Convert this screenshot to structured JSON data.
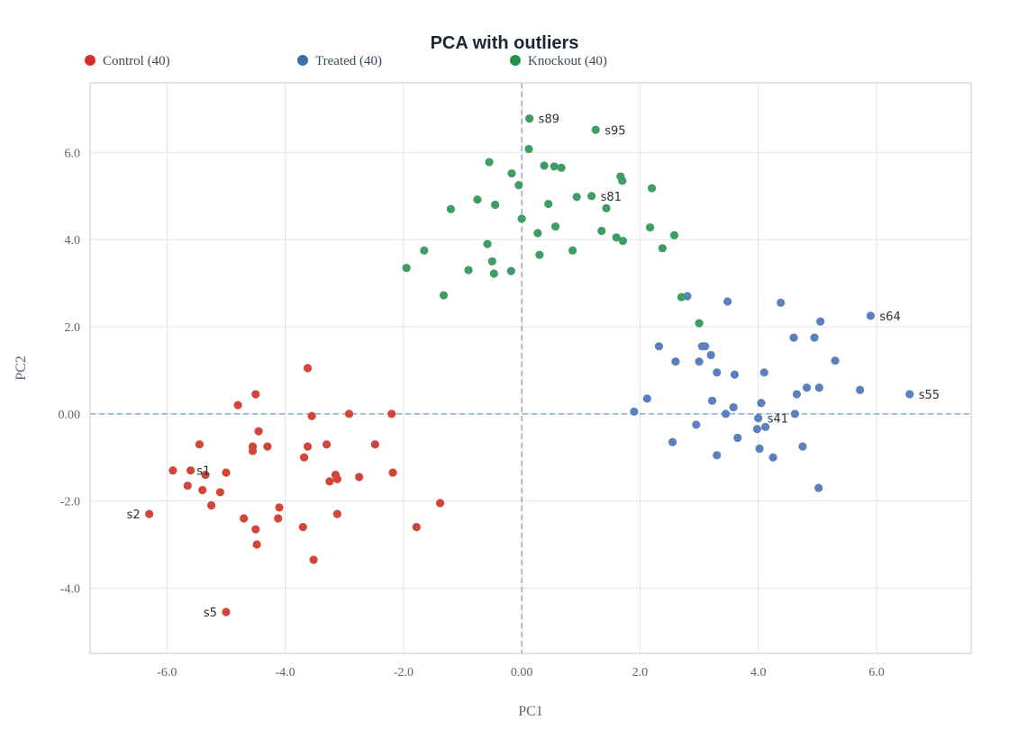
{
  "chart_data": {
    "type": "scatter",
    "title": "PCA with outliers",
    "xlabel": "PC1",
    "ylabel": "PC2",
    "xlim": [
      -7.3,
      7.6
    ],
    "ylim": [
      -5.5,
      7.6
    ],
    "xticks": [
      -6,
      -4,
      -2,
      0,
      2,
      4,
      6
    ],
    "yticks": [
      -4,
      -2,
      0,
      2,
      4,
      6
    ],
    "xtick_labels": [
      "-6.0",
      "-4.0",
      "-2.0",
      "0.00",
      "2.0",
      "4.0",
      "6.0"
    ],
    "ytick_labels": [
      "-4.0",
      "-2.0",
      "0.00",
      "2.0",
      "4.0",
      "6.0"
    ],
    "grid": true,
    "zero_lines": true,
    "legend_position": "top",
    "series": [
      {
        "name": "Control (40)",
        "color": "#d2453c",
        "legend_color": "#d42f26",
        "x": [
          -6.3,
          -5.9,
          -5.65,
          -5.6,
          -5.45,
          -5.4,
          -5.35,
          -5.25,
          -5.1,
          -5.0,
          -5.0,
          -4.8,
          -4.7,
          -4.55,
          -4.55,
          -4.5,
          -4.5,
          -4.48,
          -4.45,
          -4.3,
          -4.12,
          -4.1,
          -3.7,
          -3.68,
          -3.62,
          -3.62,
          -3.55,
          -3.52,
          -3.3,
          -3.25,
          -3.15,
          -3.12,
          -3.12,
          -2.92,
          -2.75,
          -2.48,
          -2.2,
          -2.18,
          -1.78,
          -1.38
        ],
        "y": [
          -2.3,
          -1.3,
          -1.65,
          -1.3,
          -0.7,
          -1.75,
          -1.4,
          -2.1,
          -1.8,
          -1.35,
          -4.55,
          0.2,
          -2.4,
          -0.75,
          -0.85,
          0.45,
          -2.65,
          -3.0,
          -0.4,
          -0.75,
          -2.4,
          -2.15,
          -2.6,
          -1.0,
          -0.75,
          1.05,
          -0.05,
          -3.35,
          -0.7,
          -1.55,
          -1.4,
          -1.5,
          -2.3,
          0.0,
          -1.45,
          -0.7,
          0.0,
          -1.35,
          -2.6,
          -2.05
        ]
      },
      {
        "name": "Treated (40)",
        "color": "#5a80bd",
        "legend_color": "#3b6ea8",
        "x": [
          1.9,
          2.12,
          2.32,
          2.55,
          2.6,
          2.8,
          2.95,
          3.0,
          3.05,
          3.1,
          3.2,
          3.22,
          3.3,
          3.3,
          3.45,
          3.48,
          3.58,
          3.6,
          3.65,
          3.98,
          4.0,
          4.02,
          4.05,
          4.1,
          4.12,
          4.25,
          4.38,
          4.6,
          4.62,
          4.65,
          4.75,
          4.82,
          4.95,
          5.02,
          5.03,
          5.05,
          5.3,
          5.72,
          5.9,
          6.56
        ],
        "y": [
          0.05,
          0.35,
          1.55,
          -0.65,
          1.2,
          2.7,
          -0.25,
          1.2,
          1.55,
          1.55,
          1.35,
          0.3,
          0.95,
          -0.95,
          0.0,
          2.58,
          0.15,
          0.9,
          -0.55,
          -0.35,
          -0.1,
          -0.8,
          0.25,
          0.95,
          -0.3,
          -1.0,
          2.55,
          1.75,
          0.0,
          0.45,
          -0.75,
          0.6,
          1.75,
          -1.7,
          0.6,
          2.12,
          1.22,
          0.55,
          2.25,
          0.45
        ]
      },
      {
        "name": "Knockout (40)",
        "color": "#3e9d63",
        "legend_color": "#23924d",
        "x": [
          -1.95,
          -1.65,
          -1.32,
          -1.2,
          -0.9,
          -0.75,
          -0.58,
          -0.55,
          -0.5,
          -0.47,
          -0.45,
          -0.18,
          -0.17,
          -0.05,
          0.0,
          0.12,
          0.13,
          0.27,
          0.3,
          0.38,
          0.45,
          0.55,
          0.57,
          0.67,
          0.93,
          0.86,
          1.18,
          1.25,
          1.35,
          1.43,
          1.6,
          1.67,
          1.7,
          1.71,
          2.17,
          2.2,
          2.38,
          2.58,
          2.7,
          3.0
        ],
        "y": [
          3.35,
          3.75,
          2.72,
          4.7,
          3.3,
          4.92,
          3.9,
          5.78,
          3.5,
          3.22,
          4.8,
          3.28,
          5.52,
          5.25,
          4.48,
          6.08,
          6.78,
          4.15,
          3.65,
          5.7,
          4.82,
          5.68,
          4.3,
          5.65,
          4.98,
          3.75,
          5.0,
          6.52,
          4.2,
          4.72,
          4.05,
          5.45,
          5.35,
          3.97,
          4.28,
          5.18,
          3.8,
          4.1,
          2.68,
          2.08
        ]
      }
    ],
    "annotations": [
      {
        "text": "s1",
        "x": -5.65,
        "y": -1.3,
        "side": "right"
      },
      {
        "text": "s2",
        "x": -6.3,
        "y": -2.3,
        "side": "left"
      },
      {
        "text": "s5",
        "x": -5.0,
        "y": -4.55,
        "side": "left"
      },
      {
        "text": "s89",
        "x": 0.13,
        "y": 6.78,
        "side": "right"
      },
      {
        "text": "s95",
        "x": 1.25,
        "y": 6.52,
        "side": "right"
      },
      {
        "text": "s81",
        "x": 1.18,
        "y": 5.0,
        "side": "right"
      },
      {
        "text": "s64",
        "x": 5.9,
        "y": 2.25,
        "side": "right"
      },
      {
        "text": "s55",
        "x": 6.56,
        "y": 0.45,
        "side": "right"
      },
      {
        "text": "s41",
        "x": 4.0,
        "y": -0.1,
        "side": "right"
      }
    ]
  }
}
